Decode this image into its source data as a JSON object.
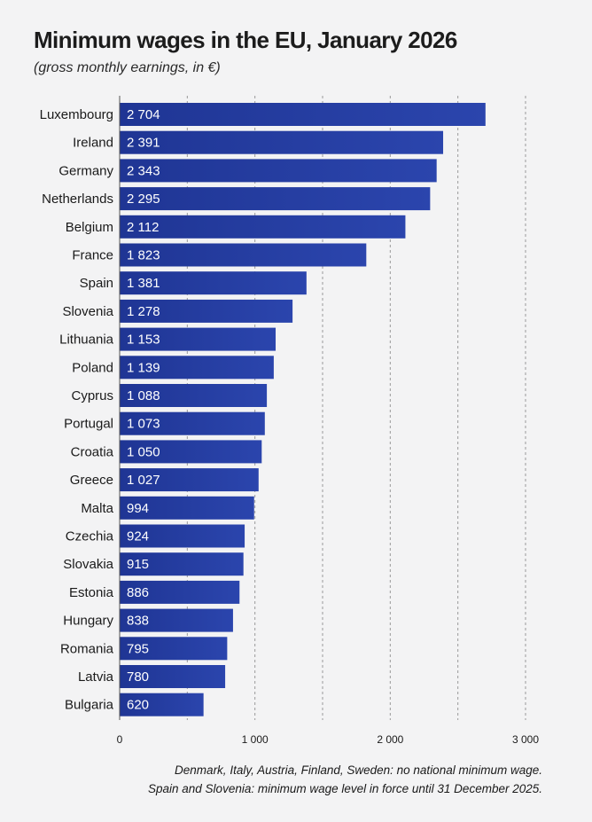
{
  "chart_data": {
    "type": "bar",
    "orientation": "horizontal",
    "title": "Minimum wages in the EU, January 2026",
    "subtitle": "(gross monthly earnings, in €)",
    "categories": [
      "Luxembourg",
      "Ireland",
      "Germany",
      "Netherlands",
      "Belgium",
      "France",
      "Spain",
      "Slovenia",
      "Lithuania",
      "Poland",
      "Cyprus",
      "Portugal",
      "Croatia",
      "Greece",
      "Malta",
      "Czechia",
      "Slovakia",
      "Estonia",
      "Hungary",
      "Romania",
      "Latvia",
      "Bulgaria"
    ],
    "values": [
      2704,
      2391,
      2343,
      2295,
      2112,
      1823,
      1381,
      1278,
      1153,
      1139,
      1088,
      1073,
      1050,
      1027,
      994,
      924,
      915,
      886,
      838,
      795,
      780,
      620
    ],
    "value_labels": [
      "2 704",
      "2 391",
      "2 343",
      "2 295",
      "2 112",
      "1 823",
      "1 381",
      "1 278",
      "1 153",
      "1 139",
      "1 088",
      "1 073",
      "1 050",
      "1 027",
      "994",
      "924",
      "915",
      "886",
      "838",
      "795",
      "780",
      "620"
    ],
    "xlim": [
      0,
      3000
    ],
    "xticks": [
      0,
      1000,
      2000,
      3000
    ],
    "xtick_labels": [
      "0",
      "1 000",
      "2 000",
      "3 000"
    ],
    "grid": "vertical dashed",
    "bar_color": "#1f3594",
    "bar_color_light": "#2b45ad",
    "footnotes": [
      "Denmark, Italy, Austria, Finland, Sweden: no national minimum wage.",
      "Spain and Slovenia: minimum wage level in force until 31 December 2025."
    ]
  }
}
